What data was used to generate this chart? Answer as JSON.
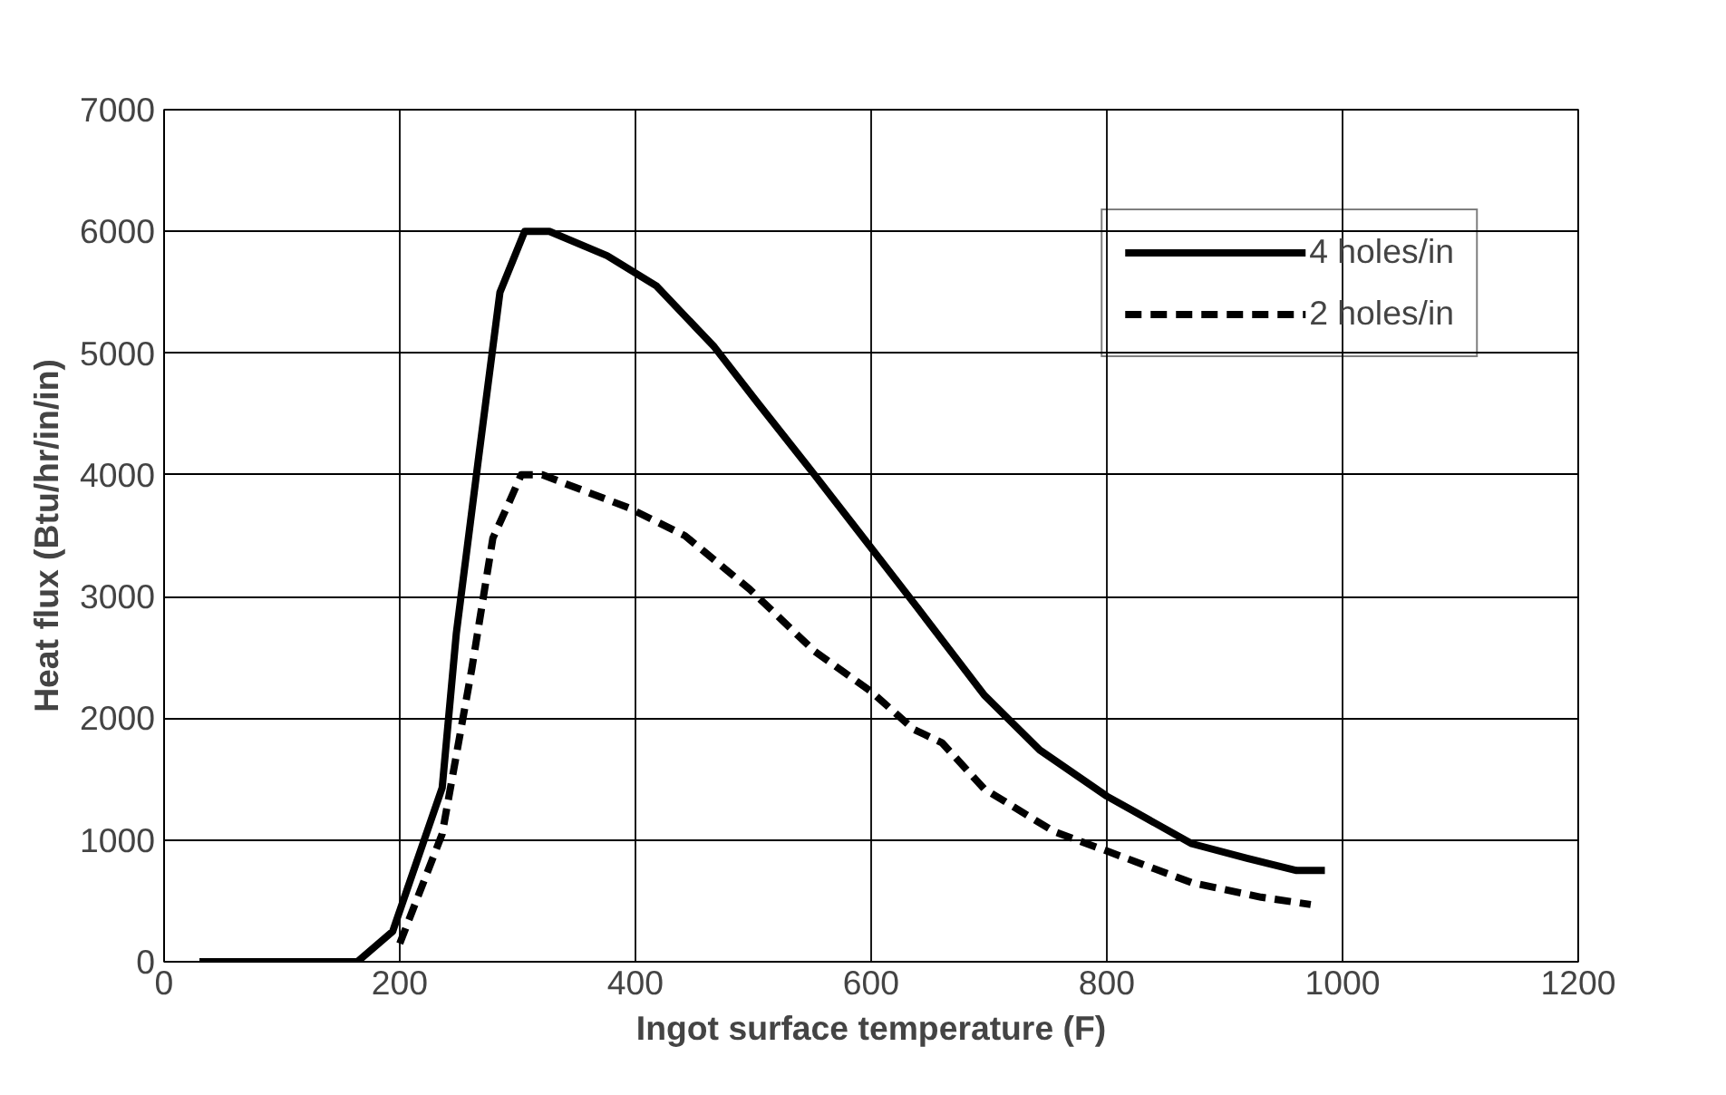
{
  "chart_data": {
    "type": "line",
    "xlabel": "Ingot surface temperature (F)",
    "ylabel": "Heat flux (Btu/hr/in/in)",
    "xlim": [
      0,
      1200
    ],
    "xticks": [
      0,
      200,
      400,
      600,
      800,
      1000,
      1200
    ],
    "ylim": [
      0,
      7000
    ],
    "yticks": [
      0,
      1000,
      2000,
      3000,
      4000,
      5000,
      6000,
      7000
    ],
    "grid": true,
    "legend": "top right",
    "marker": "none",
    "series": [
      {
        "name": "4 holes/in",
        "color": "#000000",
        "line_style": "solid",
        "x": [
          30,
          100,
          164,
          194,
          236,
          248,
          267,
          285,
          306,
          327,
          376,
          418,
          467,
          503,
          552,
          588,
          636,
          666,
          696,
          743,
          800,
          824,
          872,
          919,
          961,
          985
        ],
        "values": [
          0,
          0,
          0,
          250,
          1430,
          2700,
          4150,
          5500,
          6000,
          6000,
          5800,
          5550,
          5050,
          4600,
          4000,
          3550,
          2950,
          2570,
          2190,
          1740,
          1360,
          1230,
          970,
          850,
          750,
          750
        ]
      },
      {
        "name": "2 holes/in",
        "color": "#000000",
        "line_style": "dashed",
        "x": [
          200,
          236,
          261,
          279,
          294,
          303,
          321,
          394,
          442,
          497,
          552,
          600,
          636,
          660,
          696,
          755,
          800,
          872,
          931,
          973
        ],
        "values": [
          150,
          1050,
          2400,
          3480,
          3800,
          4000,
          4000,
          3730,
          3500,
          3060,
          2550,
          2220,
          1910,
          1800,
          1420,
          1070,
          910,
          650,
          530,
          470
        ]
      }
    ]
  }
}
